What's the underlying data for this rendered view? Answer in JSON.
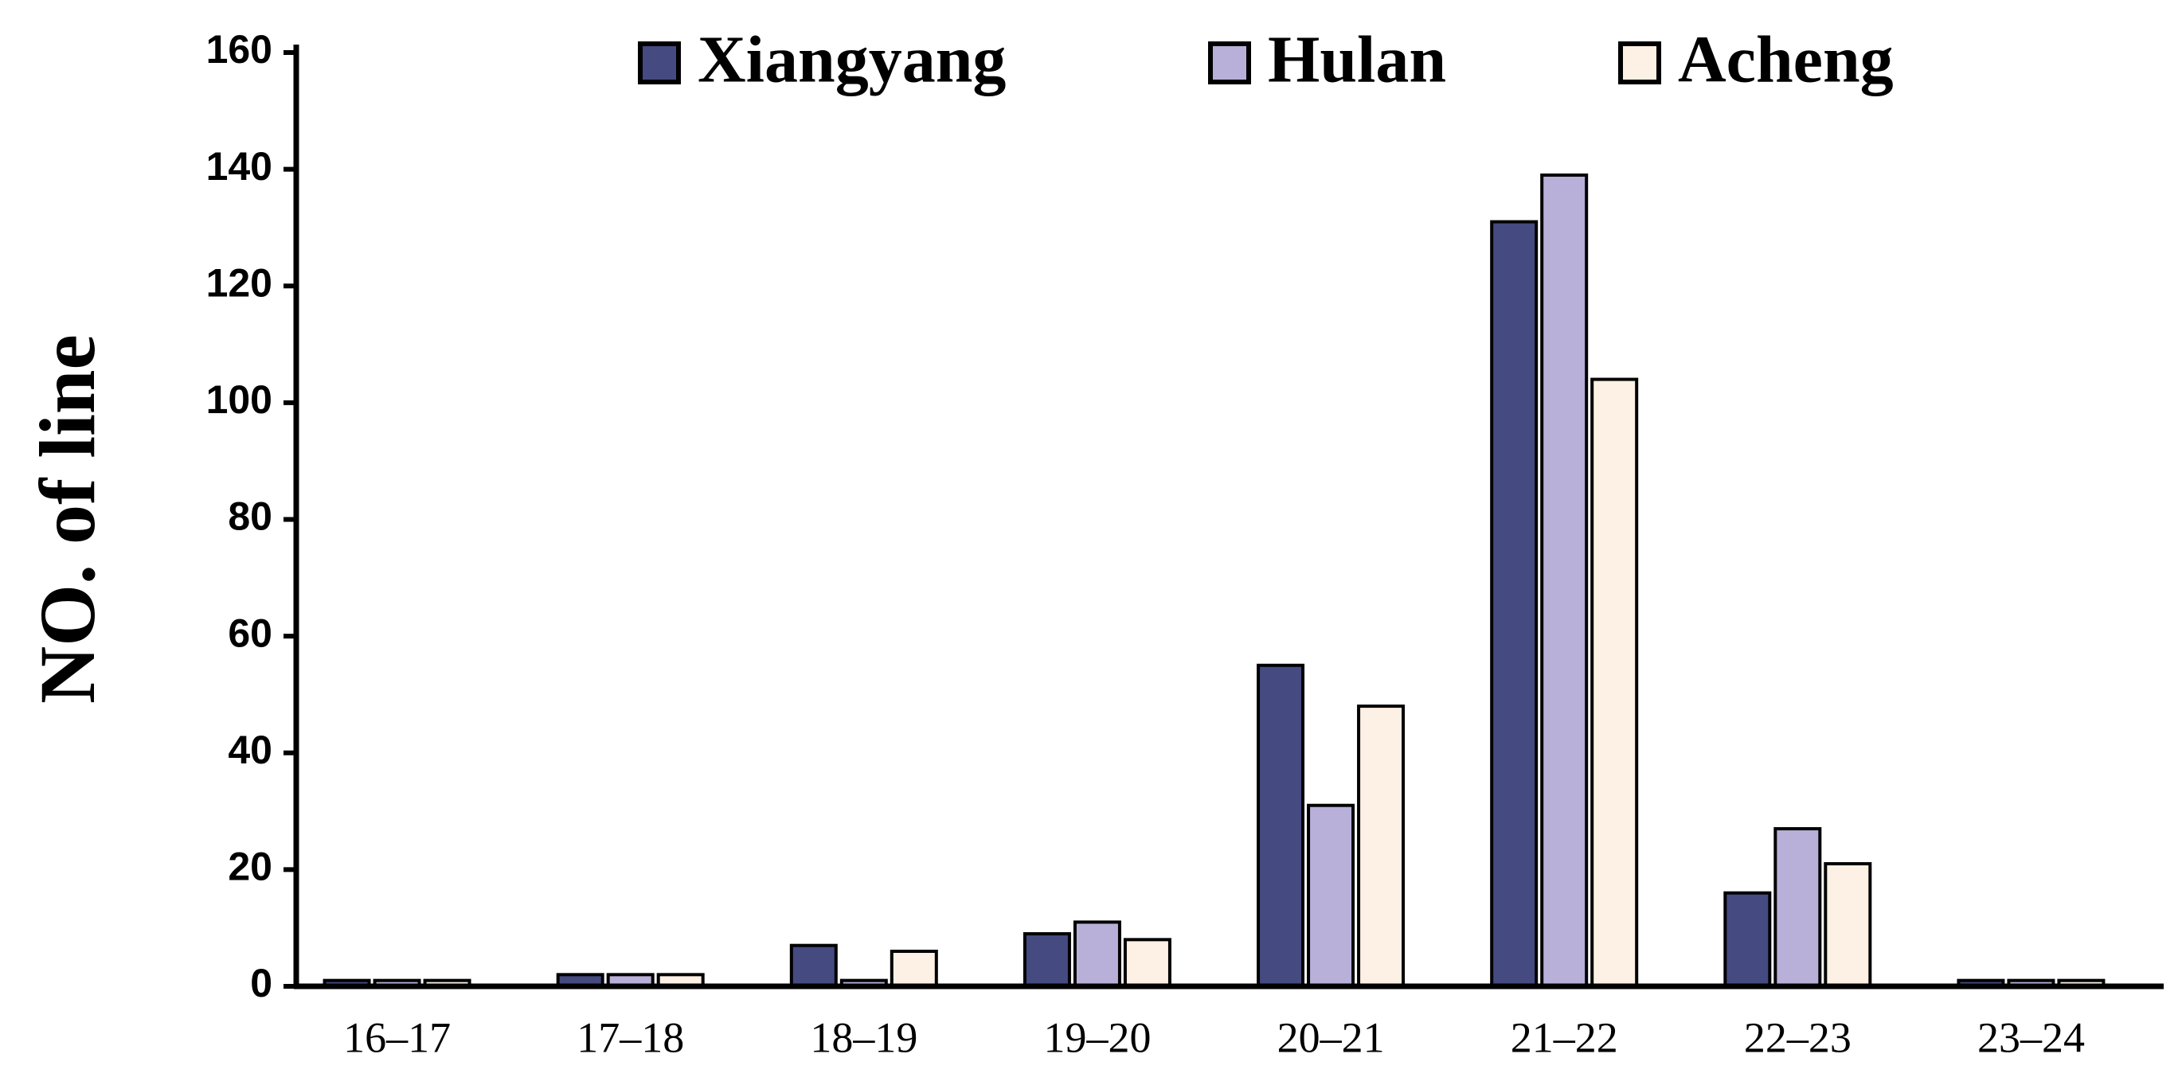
{
  "chart_data": {
    "type": "bar",
    "y_label": "NO. of line",
    "categories": [
      "16–17",
      "17–18",
      "18–19",
      "19–20",
      "20–21",
      "21–22",
      "22–23",
      "23–24"
    ],
    "series": [
      {
        "name": "Xiangyang",
        "color": "#454a80",
        "values": [
          1,
          2,
          7,
          9,
          55,
          131,
          16,
          1
        ]
      },
      {
        "name": "Hulan",
        "color": "#b8b0d8",
        "values": [
          1,
          2,
          1,
          11,
          31,
          139,
          27,
          1
        ]
      },
      {
        "name": "Acheng",
        "color": "#fdf0e4",
        "values": [
          1,
          2,
          6,
          8,
          48,
          104,
          21,
          1
        ]
      }
    ],
    "ylim": [
      0,
      160
    ],
    "yticks": [
      0,
      20,
      40,
      60,
      80,
      100,
      120,
      140,
      160
    ],
    "legend": "top",
    "grid": false
  }
}
